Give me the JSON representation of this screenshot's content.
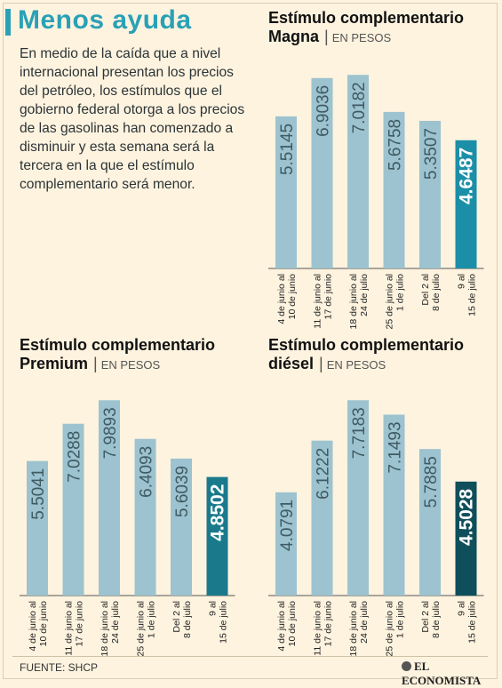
{
  "title": "Menos ayuda",
  "intro": "En medio de la caída que a nivel internacional presentan los precios del petróleo, los estímulos que el gobierno federal otorga a los precios de las gasolinas han comenzado a disminuir y esta semana será la tercera en la que el estímulo complementario será menor.",
  "source": "FUENTE: SHCP",
  "publisher": "EL ECONOMISTA",
  "colors": {
    "bar": "#9cc3cf",
    "highlight_magna": "#1c8fa8",
    "highlight_premium": "#1a7a8c",
    "highlight_diesel": "#0f4f5b",
    "title": "#2aa1b6",
    "background": "#fdf3df"
  },
  "chart_data": [
    {
      "type": "bar",
      "title_line1": "Estímulo complementario",
      "title_line2": "Magna",
      "unit": "EN PESOS",
      "categories": [
        "4 de junio al|10 de junio",
        "11 de junio al|17 de junio",
        "18 de junio al|24 de julio",
        "25 de junio al|1 de julio",
        "Del 2 al|8 de julio",
        "9 al|15 de julio"
      ],
      "values": [
        5.5145,
        6.9036,
        7.0182,
        5.6758,
        5.3507,
        4.6487
      ],
      "value_labels": [
        "5.5145",
        "6.9036",
        "7.0182",
        "5.6758",
        "5.3507",
        "4.6487"
      ],
      "highlight_index": 5,
      "ylim": [
        0,
        7.8
      ]
    },
    {
      "type": "bar",
      "title_line1": "Estímulo complementario",
      "title_line2": "Premium",
      "unit": "EN PESOS",
      "categories": [
        "4 de junio al|10 de junio",
        "11 de junio al|17 de junio",
        "18 de junio al|24 de julio",
        "25 de junio al|1 de julio",
        "Del 2 al|8 de julio",
        "9 al|15 de julio"
      ],
      "values": [
        5.5041,
        7.0288,
        7.9893,
        6.4093,
        5.6039,
        4.8502
      ],
      "value_labels": [
        "5.5041",
        "7.0288",
        "7.9893",
        "6.4093",
        "5.6039",
        "4.8502"
      ],
      "highlight_index": 5,
      "ylim": [
        0,
        8.8
      ]
    },
    {
      "type": "bar",
      "title_line1": "Estímulo complementario",
      "title_line2": "diésel",
      "unit": "EN PESOS",
      "categories": [
        "4 de junio al|10 de junio",
        "11 de junio al|17 de junio",
        "18 de junio al|24 de julio",
        "25 de junio al|1 de julio",
        "Del 2 al|8 de julio",
        "9 al|15 de julio"
      ],
      "values": [
        4.0791,
        6.1222,
        7.7183,
        7.1493,
        5.7885,
        4.5028
      ],
      "value_labels": [
        "4.0791",
        "6.1222",
        "7.7183",
        "7.1493",
        "5.7885",
        "4.5028"
      ],
      "highlight_index": 5,
      "ylim": [
        0,
        8.5
      ]
    }
  ]
}
